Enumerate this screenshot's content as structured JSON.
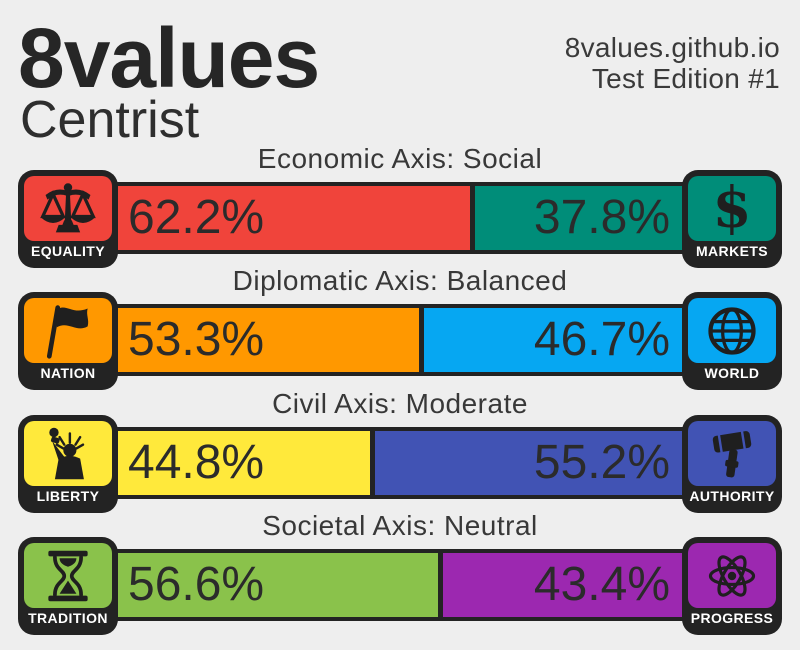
{
  "page": {
    "background": "#eeeeee",
    "frame_color": "#232323",
    "text_color": "#2b2b2b"
  },
  "header": {
    "title": "8values",
    "result": "Centrist",
    "site": "8values.github.io",
    "edition": "Test Edition #1"
  },
  "axes": [
    {
      "title": "Economic Axis: Social",
      "left": {
        "label": "EQUALITY",
        "icon": "balance-scale-icon",
        "percent": "62.2%",
        "value": 62.2,
        "color": "#f0443b"
      },
      "right": {
        "label": "MARKETS",
        "icon": "dollar-sign-icon",
        "percent": "37.8%",
        "value": 37.8,
        "color": "#008d79"
      }
    },
    {
      "title": "Diplomatic Axis: Balanced",
      "left": {
        "label": "NATION",
        "icon": "flag-icon",
        "percent": "53.3%",
        "value": 53.3,
        "color": "#ff9800"
      },
      "right": {
        "label": "WORLD",
        "icon": "globe-icon",
        "percent": "46.7%",
        "value": 46.7,
        "color": "#06a7f2"
      }
    },
    {
      "title": "Civil Axis: Moderate",
      "left": {
        "label": "LIBERTY",
        "icon": "statue-of-liberty-icon",
        "percent": "44.8%",
        "value": 44.8,
        "color": "#ffe93b"
      },
      "right": {
        "label": "AUTHORITY",
        "icon": "gavel-icon",
        "percent": "55.2%",
        "value": 55.2,
        "color": "#4153b4"
      }
    },
    {
      "title": "Societal Axis: Neutral",
      "left": {
        "label": "TRADITION",
        "icon": "hourglass-icon",
        "percent": "56.6%",
        "value": 56.6,
        "color": "#8ac24b"
      },
      "right": {
        "label": "PROGRESS",
        "icon": "atom-icon",
        "percent": "43.4%",
        "value": 43.4,
        "color": "#9c28b0"
      }
    }
  ],
  "chart_data": {
    "type": "bar",
    "subtype": "horizontal-stacked-percentage",
    "title": "8values — Centrist",
    "subtitle": "8values.github.io Test Edition #1",
    "categories": [
      "Economic Axis: Social",
      "Diplomatic Axis: Balanced",
      "Civil Axis: Moderate",
      "Societal Axis: Neutral"
    ],
    "series": [
      {
        "name": "left-side",
        "labels": [
          "Equality",
          "Nation",
          "Liberty",
          "Tradition"
        ],
        "values": [
          62.2,
          53.3,
          44.8,
          56.6
        ],
        "colors": [
          "#f0443b",
          "#ff9800",
          "#ffe93b",
          "#8ac24b"
        ]
      },
      {
        "name": "right-side",
        "labels": [
          "Markets",
          "World",
          "Authority",
          "Progress"
        ],
        "values": [
          37.8,
          46.7,
          55.2,
          43.4
        ],
        "colors": [
          "#008d79",
          "#06a7f2",
          "#4153b4",
          "#9c28b0"
        ]
      }
    ],
    "xlim": [
      0,
      100
    ],
    "grid": false,
    "legend": "icon-tiles-at-bar-ends",
    "value_labels": "inside-segments"
  }
}
